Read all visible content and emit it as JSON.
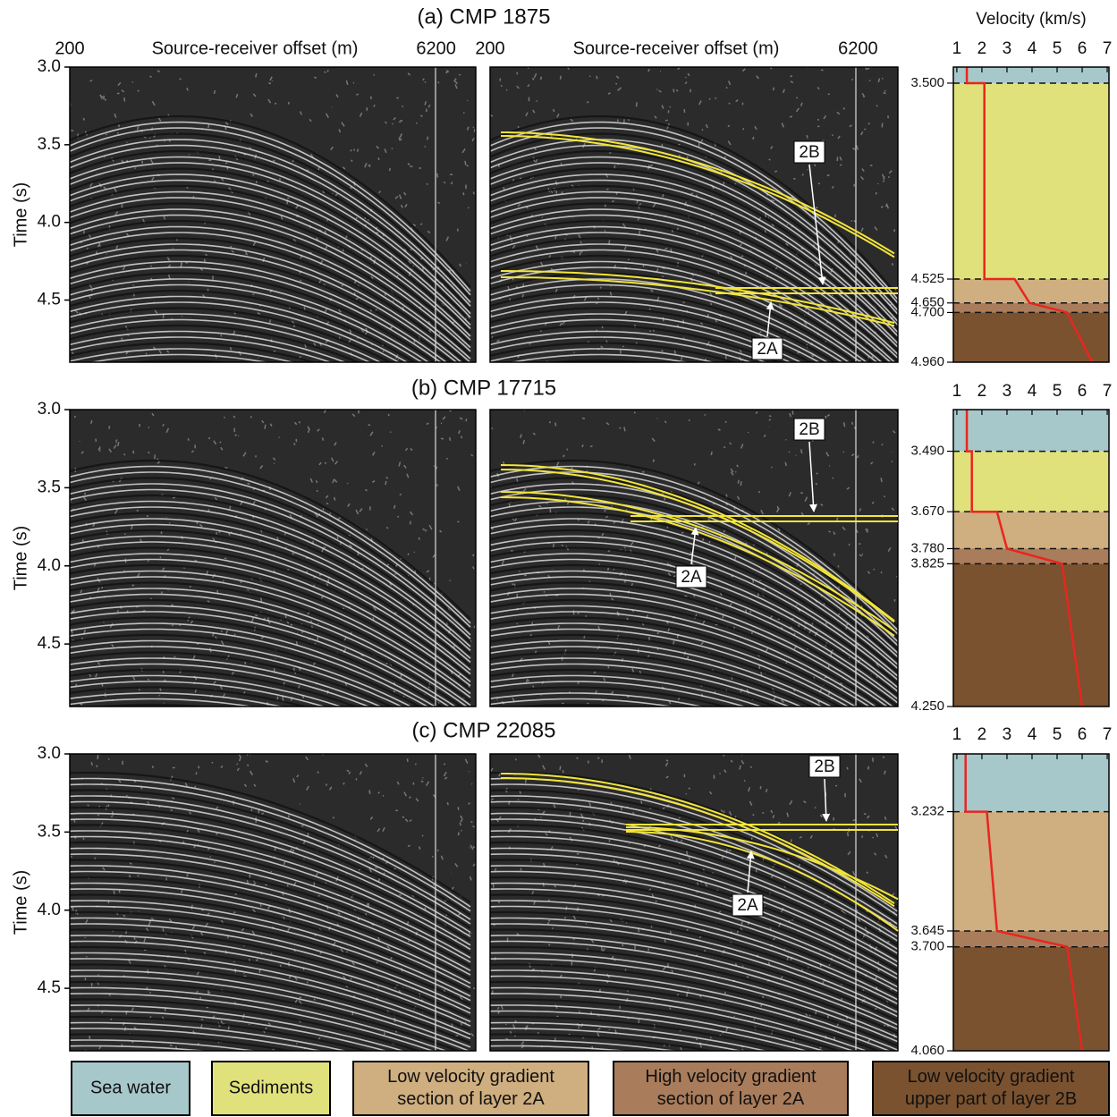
{
  "rows": [
    {
      "title": "(a) CMP 1875",
      "seismic": {
        "xlabel": "Source-receiver offset (m)",
        "xlim": [
          200,
          6850
        ],
        "xticks": [
          200,
          6200
        ],
        "ylabel": "Time (s)",
        "ylim": [
          3.0,
          4.9
        ],
        "yticks": [
          {
            "value": 3.0,
            "label": "3.0"
          },
          3.5,
          {
            "value": 4.0,
            "label": "4.0"
          },
          4.5
        ]
      },
      "annotations": [
        "2B",
        "2A"
      ],
      "velocity": {
        "xlabel": "Velocity (km/s)",
        "xlim": [
          0.86,
          7.07
        ],
        "xticks": [
          1,
          2,
          3,
          4,
          5,
          6,
          7
        ],
        "ylim": [
          3.416,
          4.96
        ],
        "yticks": [
          {
            "value": 3.5,
            "label": "3.500"
          },
          {
            "value": 4.525,
            "label": "4.525"
          },
          {
            "value": 4.65,
            "label": "4.650"
          },
          {
            "value": 4.7,
            "label": "4.700"
          },
          {
            "value": 4.96,
            "label": "4.960"
          }
        ],
        "layer_kinds": [
          0,
          1,
          2,
          3,
          4
        ],
        "profile_velocity": [
          1.4,
          1.4,
          2.1,
          2.1,
          3.3,
          3.9,
          5.4,
          6.4
        ],
        "profile_depth": [
          3.416,
          3.5,
          3.5,
          4.525,
          4.525,
          4.65,
          4.7,
          4.96
        ]
      }
    },
    {
      "title": "(b) CMP 17715",
      "seismic": {
        "ylabel": "Time (s)",
        "ylim": [
          3.0,
          4.9
        ],
        "yticks": [
          {
            "value": 3.0,
            "label": "3.0"
          },
          3.5,
          {
            "value": 4.0,
            "label": "4.0"
          },
          4.5
        ]
      },
      "annotations": [
        "2B",
        "2A"
      ],
      "velocity": {
        "xlim": [
          0.86,
          7.07
        ],
        "xticks": [
          1,
          2,
          3,
          4,
          5,
          6,
          7
        ],
        "ylim": [
          3.366,
          4.25
        ],
        "yticks": [
          {
            "value": 3.49,
            "label": "3.490"
          },
          {
            "value": 3.67,
            "label": "3.670"
          },
          {
            "value": 3.78,
            "label": "3.780"
          },
          {
            "value": 3.825,
            "label": "3.825"
          },
          {
            "value": 4.25,
            "label": "4.250"
          }
        ],
        "layer_kinds": [
          0,
          1,
          2,
          3,
          4
        ],
        "profile_velocity": [
          1.4,
          1.4,
          1.6,
          1.6,
          2.6,
          3.0,
          5.2,
          6.0
        ],
        "profile_depth": [
          3.366,
          3.49,
          3.49,
          3.67,
          3.67,
          3.78,
          3.825,
          4.25
        ]
      }
    },
    {
      "title": "(c) CMP 22085",
      "seismic": {
        "ylabel": "Time (s)",
        "ylim": [
          3.0,
          4.9
        ],
        "yticks": [
          {
            "value": 3.0,
            "label": "3.0"
          },
          3.5,
          {
            "value": 4.0,
            "label": "4.0"
          },
          4.5
        ]
      },
      "annotations": [
        "2B",
        "2A"
      ],
      "velocity": {
        "xlim": [
          0.86,
          7.07
        ],
        "xticks": [
          1,
          2,
          3,
          4,
          5,
          6,
          7
        ],
        "ylim": [
          3.032,
          4.06
        ],
        "yticks": [
          {
            "value": 3.232,
            "label": "3.232"
          },
          {
            "value": 3.645,
            "label": "3.645"
          },
          {
            "value": 3.7,
            "label": "3.700"
          },
          {
            "value": 4.06,
            "label": "4.060"
          }
        ],
        "layer_kinds": [
          0,
          2,
          3,
          4
        ],
        "profile_velocity": [
          1.35,
          1.35,
          2.2,
          2.6,
          5.4,
          6.0
        ],
        "profile_depth": [
          3.032,
          3.232,
          3.232,
          3.645,
          3.7,
          4.06
        ]
      }
    }
  ],
  "legend": [
    {
      "lines": [
        "Sea water"
      ],
      "color": "#a7c8cb"
    },
    {
      "lines": [
        "Sediments"
      ],
      "color": "#e0e17b"
    },
    {
      "lines": [
        "Low velocity gradient",
        "section of layer 2A"
      ],
      "color": "#cfae7f"
    },
    {
      "lines": [
        "High velocity gradient",
        "section of layer 2A"
      ],
      "color": "#a97c5b"
    },
    {
      "lines": [
        "Low velocity gradient",
        "upper part of layer 2B"
      ],
      "color": "#7a522f"
    }
  ],
  "profile_color": "#e8261f"
}
